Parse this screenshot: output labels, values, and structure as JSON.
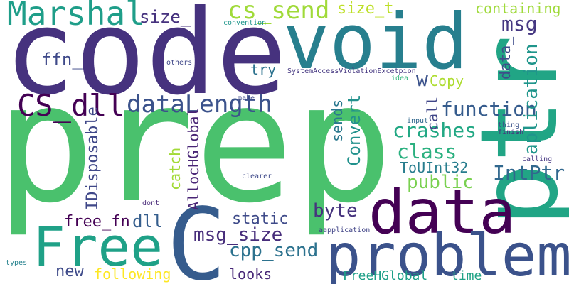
{
  "words": [
    {
      "text": "code",
      "color": "#46327e"
    },
    {
      "text": "prep",
      "color": "#4ac16d"
    },
    {
      "text": "void",
      "color": "#277f8e"
    },
    {
      "text": "ptr",
      "color": "#21a585"
    },
    {
      "text": "C",
      "color": "#365c8d"
    },
    {
      "text": "data",
      "color": "#440154"
    },
    {
      "text": "problem",
      "color": "#3b528b"
    },
    {
      "text": "Free",
      "color": "#1fa187"
    },
    {
      "text": "Marshal",
      "color": "#1f9e89"
    },
    {
      "text": "CS_dll",
      "color": "#440154"
    },
    {
      "text": "dataLength",
      "color": "#3b528b"
    },
    {
      "text": "cs_send",
      "color": "#a0da39"
    },
    {
      "text": "msg",
      "color": "#453781"
    },
    {
      "text": "function",
      "color": "#365c8d"
    },
    {
      "text": "crashes",
      "color": "#22a884"
    },
    {
      "text": "class",
      "color": "#2ab07f"
    },
    {
      "text": "public",
      "color": "#7ad151"
    },
    {
      "text": "IntPtr",
      "color": "#31688e"
    },
    {
      "text": "aplication",
      "color": "#1f958b"
    },
    {
      "text": "Convert",
      "color": "#21918c"
    },
    {
      "text": "byte",
      "color": "#46337e"
    },
    {
      "text": "cpp_send",
      "color": "#2c728e"
    },
    {
      "text": "msg_size",
      "color": "#472d7b"
    },
    {
      "text": "static",
      "color": "#3e4a89"
    },
    {
      "text": "free_fn",
      "color": "#440154"
    },
    {
      "text": "dll",
      "color": "#355e8d"
    },
    {
      "text": "size_",
      "color": "#46327e"
    },
    {
      "text": "size_t",
      "color": "#bddf26"
    },
    {
      "text": "containing",
      "color": "#9fda3a"
    },
    {
      "text": "try",
      "color": "#2c728e"
    },
    {
      "text": "ffn_",
      "color": "#3e4989"
    },
    {
      "text": "w",
      "color": "#3b528b"
    },
    {
      "text": "Copy",
      "color": "#addc30"
    },
    {
      "text": "data_",
      "color": "#3e4c8a"
    },
    {
      "text": "call",
      "color": "#404688"
    },
    {
      "text": "sends",
      "color": "#2a788e"
    },
    {
      "text": "catch",
      "color": "#a2da37"
    },
    {
      "text": "IDisposable",
      "color": "#3f4788"
    },
    {
      "text": "AllocHGlobal",
      "color": "#482475"
    },
    {
      "text": "ToUInt32",
      "color": "#287d8e"
    },
    {
      "text": "new",
      "color": "#3e4a89"
    },
    {
      "text": "following",
      "color": "#fde725"
    },
    {
      "text": "looks",
      "color": "#482878"
    },
    {
      "text": "FreeHGlobal",
      "color": "#1fa088"
    },
    {
      "text": "time",
      "color": "#20a386"
    },
    {
      "text": "convention",
      "color": "#1f968b"
    },
    {
      "text": "others",
      "color": "#3f4788"
    },
    {
      "text": "SystemAccessViolationExcetpion",
      "color": "#453781"
    },
    {
      "text": "idea",
      "color": "#32b67a"
    },
    {
      "text": "make",
      "color": "#3e4989"
    },
    {
      "text": "input",
      "color": "#31688e"
    },
    {
      "text": "thing",
      "color": "#3b528b"
    },
    {
      "text": "finish",
      "color": "#46337e"
    },
    {
      "text": "calling",
      "color": "#453581"
    },
    {
      "text": "clearer",
      "color": "#3e4989"
    },
    {
      "text": "dont",
      "color": "#482878"
    },
    {
      "text": "aapplication",
      "color": "#414487"
    },
    {
      "text": "types",
      "color": "#26828e"
    }
  ]
}
